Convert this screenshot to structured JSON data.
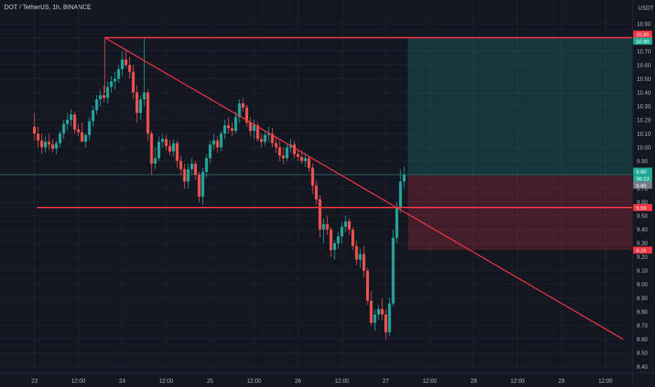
{
  "header": {
    "title": "DOT / TetherUS, 1h, BINANCE"
  },
  "chart_data": {
    "type": "candlestick",
    "symbol": "DOT / TetherUS",
    "interval": "1h",
    "exchange": "BINANCE",
    "currency": "USDT",
    "price_ticks": [
      "10.90",
      "10.80",
      "10.70",
      "10.60",
      "10.50",
      "10.40",
      "10.30",
      "10.20",
      "10.10",
      "10.00",
      "9.90",
      "9.80",
      "9.70",
      "9.60",
      "9.50",
      "9.40",
      "9.30",
      "9.20",
      "9.10",
      "9.00",
      "8.90",
      "8.80",
      "8.70",
      "8.60",
      "8.50",
      "8.40"
    ],
    "x_ticks": [
      "23",
      "12:00",
      "24",
      "12:00",
      "25",
      "12:00",
      "26",
      "12:00",
      "27",
      "12:00",
      "28",
      "12:00",
      "29",
      "12:00"
    ],
    "price_labels": [
      {
        "text": "10.80",
        "price": 10.8,
        "color": "#f23645"
      },
      {
        "text": "10.80",
        "price": 10.8,
        "color": "#22ab94"
      },
      {
        "text": "9.80",
        "price": 9.8,
        "color": "#22ab94"
      },
      {
        "text": "36:23",
        "price": 9.8,
        "color": "#22ab94"
      },
      {
        "text": "9.80",
        "price": 9.8,
        "color": "#787b86"
      },
      {
        "text": "9.56",
        "price": 9.56,
        "color": "#f23645"
      },
      {
        "text": "9.25",
        "price": 9.25,
        "color": "#f23645"
      }
    ],
    "position": {
      "entry": 9.8,
      "target": 10.8,
      "stop": 9.25
    },
    "lines": [
      {
        "type": "horizontal",
        "price": 10.8,
        "color": "#f23645"
      },
      {
        "type": "horizontal",
        "price": 9.56,
        "color": "#f23645"
      },
      {
        "type": "trendline",
        "from": [
          23.8,
          10.8
        ],
        "to": [
          29.7,
          8.6
        ],
        "color": "#f23645"
      }
    ],
    "candles_start": 23.0,
    "candle_hours": 1,
    "candles": [
      [
        10.15,
        10.25,
        10.05,
        10.1
      ],
      [
        10.1,
        10.15,
        10.0,
        10.05
      ],
      [
        10.05,
        10.1,
        9.95,
        10.0
      ],
      [
        10.0,
        10.08,
        9.96,
        10.04
      ],
      [
        10.04,
        10.1,
        9.98,
        10.02
      ],
      [
        10.02,
        10.06,
        9.96,
        9.99
      ],
      [
        9.99,
        10.05,
        9.95,
        10.03
      ],
      [
        10.03,
        10.12,
        10.0,
        10.1
      ],
      [
        10.1,
        10.2,
        10.06,
        10.17
      ],
      [
        10.17,
        10.25,
        10.12,
        10.2
      ],
      [
        10.2,
        10.28,
        10.15,
        10.24
      ],
      [
        10.24,
        10.26,
        10.1,
        10.13
      ],
      [
        10.13,
        10.17,
        10.08,
        10.11
      ],
      [
        10.11,
        10.18,
        10.05,
        10.04
      ],
      [
        10.04,
        10.1,
        10.0,
        10.09
      ],
      [
        10.09,
        10.22,
        10.05,
        10.19
      ],
      [
        10.19,
        10.3,
        10.15,
        10.27
      ],
      [
        10.27,
        10.38,
        10.24,
        10.35
      ],
      [
        10.35,
        10.42,
        10.3,
        10.38
      ],
      [
        10.38,
        10.45,
        10.33,
        10.36
      ],
      [
        10.36,
        10.48,
        10.32,
        10.44
      ],
      [
        10.44,
        10.52,
        10.4,
        10.48
      ],
      [
        10.48,
        10.55,
        10.42,
        10.5
      ],
      [
        10.5,
        10.6,
        10.47,
        10.57
      ],
      [
        10.57,
        10.7,
        10.52,
        10.64
      ],
      [
        10.64,
        10.72,
        10.58,
        10.6
      ],
      [
        10.6,
        10.66,
        10.5,
        10.55
      ],
      [
        10.55,
        10.6,
        10.35,
        10.4
      ],
      [
        10.4,
        10.45,
        10.18,
        10.25
      ],
      [
        10.25,
        10.38,
        10.2,
        10.35
      ],
      [
        10.35,
        10.8,
        10.3,
        10.4
      ],
      [
        10.4,
        10.42,
        10.05,
        10.1
      ],
      [
        10.1,
        10.12,
        9.8,
        9.88
      ],
      [
        9.88,
        10.0,
        9.84,
        9.92
      ],
      [
        9.92,
        10.08,
        9.9,
        10.04
      ],
      [
        10.04,
        10.1,
        10.0,
        10.06
      ],
      [
        10.06,
        10.09,
        9.98,
        10.01
      ],
      [
        10.01,
        10.05,
        9.94,
        9.97
      ],
      [
        9.97,
        10.06,
        9.93,
        10.03
      ],
      [
        10.03,
        10.05,
        9.85,
        9.9
      ],
      [
        9.9,
        9.94,
        9.8,
        9.84
      ],
      [
        9.84,
        9.88,
        9.7,
        9.75
      ],
      [
        9.75,
        9.88,
        9.7,
        9.84
      ],
      [
        9.84,
        9.92,
        9.8,
        9.88
      ],
      [
        9.88,
        9.9,
        9.76,
        9.8
      ],
      [
        9.8,
        9.82,
        9.6,
        9.64
      ],
      [
        9.64,
        9.85,
        9.58,
        9.82
      ],
      [
        9.82,
        9.95,
        9.78,
        9.92
      ],
      [
        9.92,
        10.05,
        9.88,
        10.02
      ],
      [
        10.02,
        10.1,
        9.98,
        10.05
      ],
      [
        10.05,
        10.08,
        9.96,
        10.0
      ],
      [
        10.0,
        10.12,
        9.97,
        10.1
      ],
      [
        10.1,
        10.2,
        10.06,
        10.16
      ],
      [
        10.16,
        10.22,
        10.1,
        10.14
      ],
      [
        10.14,
        10.18,
        10.08,
        10.12
      ],
      [
        10.12,
        10.26,
        10.1,
        10.22
      ],
      [
        10.22,
        10.35,
        10.18,
        10.32
      ],
      [
        10.32,
        10.36,
        10.26,
        10.29
      ],
      [
        10.29,
        10.31,
        10.15,
        10.18
      ],
      [
        10.18,
        10.22,
        10.08,
        10.12
      ],
      [
        10.12,
        10.2,
        10.06,
        10.16
      ],
      [
        10.16,
        10.18,
        10.04,
        10.06
      ],
      [
        10.06,
        10.1,
        10.0,
        10.04
      ],
      [
        10.04,
        10.12,
        10.01,
        10.09
      ],
      [
        10.09,
        10.15,
        10.04,
        10.1
      ],
      [
        10.1,
        10.14,
        10.0,
        10.03
      ],
      [
        10.03,
        10.08,
        9.96,
        10.0
      ],
      [
        10.0,
        10.06,
        9.9,
        9.94
      ],
      [
        9.94,
        10.0,
        9.88,
        9.92
      ],
      [
        9.92,
        10.02,
        9.9,
        10.0
      ],
      [
        10.0,
        10.06,
        9.96,
        10.02
      ],
      [
        10.02,
        10.05,
        9.92,
        9.95
      ],
      [
        9.95,
        9.98,
        9.9,
        9.93
      ],
      [
        9.93,
        9.98,
        9.88,
        9.9
      ],
      [
        9.9,
        9.96,
        9.86,
        9.92
      ],
      [
        9.92,
        9.94,
        9.82,
        9.85
      ],
      [
        9.85,
        9.88,
        9.66,
        9.72
      ],
      [
        9.72,
        9.76,
        9.58,
        9.62
      ],
      [
        9.62,
        9.65,
        9.34,
        9.4
      ],
      [
        9.4,
        9.48,
        9.3,
        9.44
      ],
      [
        9.44,
        9.5,
        9.36,
        9.4
      ],
      [
        9.4,
        9.42,
        9.2,
        9.25
      ],
      [
        9.25,
        9.32,
        9.18,
        9.3
      ],
      [
        9.3,
        9.38,
        9.26,
        9.35
      ],
      [
        9.35,
        9.45,
        9.3,
        9.42
      ],
      [
        9.42,
        9.5,
        9.38,
        9.46
      ],
      [
        9.46,
        9.48,
        9.36,
        9.4
      ],
      [
        9.4,
        9.42,
        9.25,
        9.28
      ],
      [
        9.28,
        9.32,
        9.14,
        9.18
      ],
      [
        9.18,
        9.26,
        9.12,
        9.22
      ],
      [
        9.22,
        9.28,
        9.05,
        9.1
      ],
      [
        9.1,
        9.12,
        8.85,
        8.88
      ],
      [
        8.88,
        8.95,
        8.7,
        8.72
      ],
      [
        8.72,
        8.82,
        8.66,
        8.78
      ],
      [
        8.78,
        8.85,
        8.74,
        8.82
      ],
      [
        8.82,
        8.9,
        8.74,
        8.78
      ],
      [
        8.78,
        8.82,
        8.6,
        8.65
      ],
      [
        8.65,
        8.9,
        8.62,
        8.86
      ],
      [
        8.86,
        9.4,
        8.84,
        9.34
      ],
      [
        9.34,
        9.6,
        9.3,
        9.56
      ],
      [
        9.56,
        9.84,
        9.52,
        9.75
      ],
      [
        9.75,
        9.86,
        9.7,
        9.8
      ]
    ]
  }
}
